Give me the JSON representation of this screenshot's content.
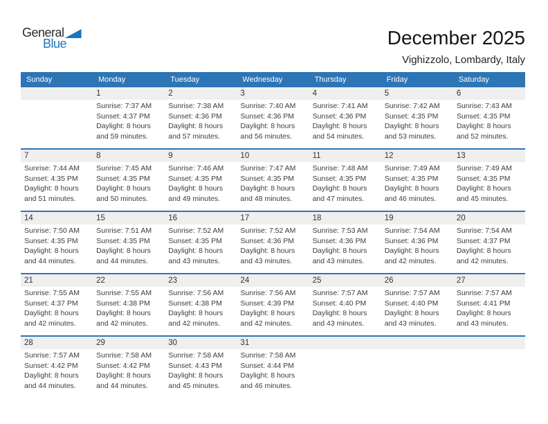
{
  "logo": {
    "general": "General",
    "blue": "Blue"
  },
  "header": {
    "title": "December 2025",
    "subtitle": "Vighizzolo, Lombardy, Italy"
  },
  "colors": {
    "accent_blue": "#2E75B6",
    "logo_blue": "#1B75BC",
    "strip_gray": "#EFEFEF"
  },
  "calendar": {
    "day_headers": [
      "Sunday",
      "Monday",
      "Tuesday",
      "Wednesday",
      "Thursday",
      "Friday",
      "Saturday"
    ],
    "weeks": [
      [
        {
          "date": "",
          "lines": []
        },
        {
          "date": "1",
          "lines": [
            "Sunrise: 7:37 AM",
            "Sunset: 4:37 PM",
            "Daylight: 8 hours",
            "and 59 minutes."
          ]
        },
        {
          "date": "2",
          "lines": [
            "Sunrise: 7:38 AM",
            "Sunset: 4:36 PM",
            "Daylight: 8 hours",
            "and 57 minutes."
          ]
        },
        {
          "date": "3",
          "lines": [
            "Sunrise: 7:40 AM",
            "Sunset: 4:36 PM",
            "Daylight: 8 hours",
            "and 56 minutes."
          ]
        },
        {
          "date": "4",
          "lines": [
            "Sunrise: 7:41 AM",
            "Sunset: 4:36 PM",
            "Daylight: 8 hours",
            "and 54 minutes."
          ]
        },
        {
          "date": "5",
          "lines": [
            "Sunrise: 7:42 AM",
            "Sunset: 4:35 PM",
            "Daylight: 8 hours",
            "and 53 minutes."
          ]
        },
        {
          "date": "6",
          "lines": [
            "Sunrise: 7:43 AM",
            "Sunset: 4:35 PM",
            "Daylight: 8 hours",
            "and 52 minutes."
          ]
        }
      ],
      [
        {
          "date": "7",
          "lines": [
            "Sunrise: 7:44 AM",
            "Sunset: 4:35 PM",
            "Daylight: 8 hours",
            "and 51 minutes."
          ]
        },
        {
          "date": "8",
          "lines": [
            "Sunrise: 7:45 AM",
            "Sunset: 4:35 PM",
            "Daylight: 8 hours",
            "and 50 minutes."
          ]
        },
        {
          "date": "9",
          "lines": [
            "Sunrise: 7:46 AM",
            "Sunset: 4:35 PM",
            "Daylight: 8 hours",
            "and 49 minutes."
          ]
        },
        {
          "date": "10",
          "lines": [
            "Sunrise: 7:47 AM",
            "Sunset: 4:35 PM",
            "Daylight: 8 hours",
            "and 48 minutes."
          ]
        },
        {
          "date": "11",
          "lines": [
            "Sunrise: 7:48 AM",
            "Sunset: 4:35 PM",
            "Daylight: 8 hours",
            "and 47 minutes."
          ]
        },
        {
          "date": "12",
          "lines": [
            "Sunrise: 7:49 AM",
            "Sunset: 4:35 PM",
            "Daylight: 8 hours",
            "and 46 minutes."
          ]
        },
        {
          "date": "13",
          "lines": [
            "Sunrise: 7:49 AM",
            "Sunset: 4:35 PM",
            "Daylight: 8 hours",
            "and 45 minutes."
          ]
        }
      ],
      [
        {
          "date": "14",
          "lines": [
            "Sunrise: 7:50 AM",
            "Sunset: 4:35 PM",
            "Daylight: 8 hours",
            "and 44 minutes."
          ]
        },
        {
          "date": "15",
          "lines": [
            "Sunrise: 7:51 AM",
            "Sunset: 4:35 PM",
            "Daylight: 8 hours",
            "and 44 minutes."
          ]
        },
        {
          "date": "16",
          "lines": [
            "Sunrise: 7:52 AM",
            "Sunset: 4:35 PM",
            "Daylight: 8 hours",
            "and 43 minutes."
          ]
        },
        {
          "date": "17",
          "lines": [
            "Sunrise: 7:52 AM",
            "Sunset: 4:36 PM",
            "Daylight: 8 hours",
            "and 43 minutes."
          ]
        },
        {
          "date": "18",
          "lines": [
            "Sunrise: 7:53 AM",
            "Sunset: 4:36 PM",
            "Daylight: 8 hours",
            "and 43 minutes."
          ]
        },
        {
          "date": "19",
          "lines": [
            "Sunrise: 7:54 AM",
            "Sunset: 4:36 PM",
            "Daylight: 8 hours",
            "and 42 minutes."
          ]
        },
        {
          "date": "20",
          "lines": [
            "Sunrise: 7:54 AM",
            "Sunset: 4:37 PM",
            "Daylight: 8 hours",
            "and 42 minutes."
          ]
        }
      ],
      [
        {
          "date": "21",
          "lines": [
            "Sunrise: 7:55 AM",
            "Sunset: 4:37 PM",
            "Daylight: 8 hours",
            "and 42 minutes."
          ]
        },
        {
          "date": "22",
          "lines": [
            "Sunrise: 7:55 AM",
            "Sunset: 4:38 PM",
            "Daylight: 8 hours",
            "and 42 minutes."
          ]
        },
        {
          "date": "23",
          "lines": [
            "Sunrise: 7:56 AM",
            "Sunset: 4:38 PM",
            "Daylight: 8 hours",
            "and 42 minutes."
          ]
        },
        {
          "date": "24",
          "lines": [
            "Sunrise: 7:56 AM",
            "Sunset: 4:39 PM",
            "Daylight: 8 hours",
            "and 42 minutes."
          ]
        },
        {
          "date": "25",
          "lines": [
            "Sunrise: 7:57 AM",
            "Sunset: 4:40 PM",
            "Daylight: 8 hours",
            "and 43 minutes."
          ]
        },
        {
          "date": "26",
          "lines": [
            "Sunrise: 7:57 AM",
            "Sunset: 4:40 PM",
            "Daylight: 8 hours",
            "and 43 minutes."
          ]
        },
        {
          "date": "27",
          "lines": [
            "Sunrise: 7:57 AM",
            "Sunset: 4:41 PM",
            "Daylight: 8 hours",
            "and 43 minutes."
          ]
        }
      ],
      [
        {
          "date": "28",
          "lines": [
            "Sunrise: 7:57 AM",
            "Sunset: 4:42 PM",
            "Daylight: 8 hours",
            "and 44 minutes."
          ]
        },
        {
          "date": "29",
          "lines": [
            "Sunrise: 7:58 AM",
            "Sunset: 4:42 PM",
            "Daylight: 8 hours",
            "and 44 minutes."
          ]
        },
        {
          "date": "30",
          "lines": [
            "Sunrise: 7:58 AM",
            "Sunset: 4:43 PM",
            "Daylight: 8 hours",
            "and 45 minutes."
          ]
        },
        {
          "date": "31",
          "lines": [
            "Sunrise: 7:58 AM",
            "Sunset: 4:44 PM",
            "Daylight: 8 hours",
            "and 46 minutes."
          ]
        },
        {
          "date": "",
          "lines": []
        },
        {
          "date": "",
          "lines": []
        },
        {
          "date": "",
          "lines": []
        }
      ]
    ]
  }
}
